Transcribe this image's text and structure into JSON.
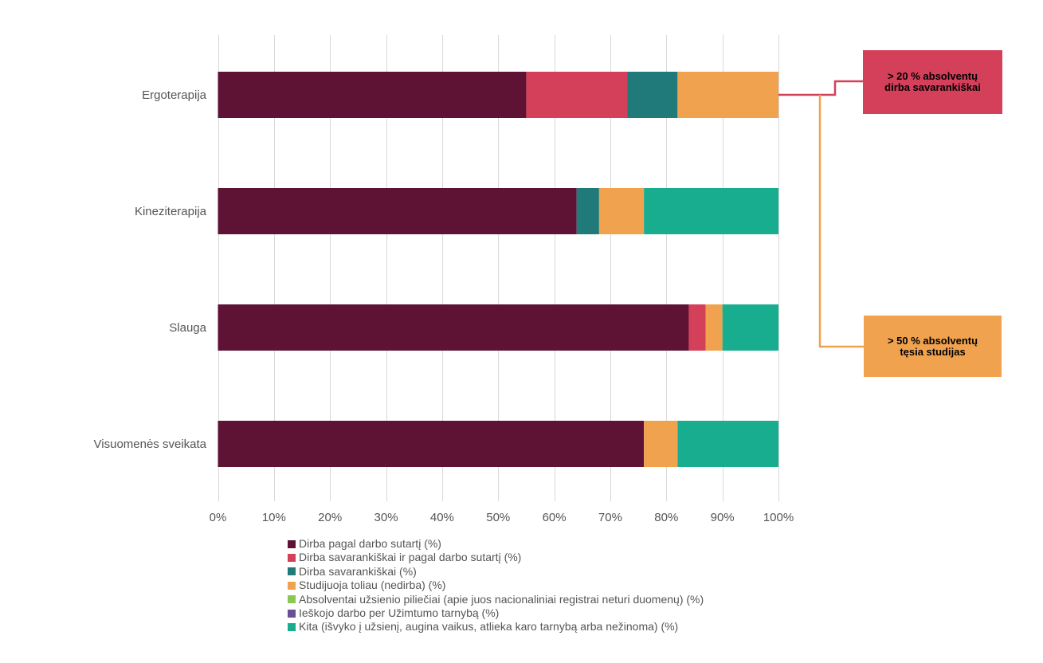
{
  "chart_data": {
    "type": "bar",
    "orientation": "horizontal",
    "stacked": "percent",
    "categories": [
      "Ergoterapija",
      "Kineziterapija",
      "Slauga",
      "Visuomenės sveikata"
    ],
    "x_ticks": [
      "0%",
      "10%",
      "20%",
      "30%",
      "40%",
      "50%",
      "60%",
      "70%",
      "80%",
      "90%",
      "100%"
    ],
    "xlim": [
      0,
      100
    ],
    "grid": true,
    "legend_position": "bottom",
    "series": [
      {
        "name": "Dirba pagal darbo sutartį (%)",
        "color": "#5e1234",
        "values": [
          55,
          64,
          84,
          76
        ]
      },
      {
        "name": "Dirba savarankiškai ir pagal darbo sutartį (%)",
        "color": "#d43f5a",
        "values": [
          18,
          0,
          3,
          0
        ]
      },
      {
        "name": "Dirba savarankiškai (%)",
        "color": "#207a79",
        "values": [
          9,
          4,
          0,
          0
        ]
      },
      {
        "name": "Studijuoja toliau (nedirba) (%)",
        "color": "#f0a24f",
        "values": [
          18,
          8,
          3,
          6
        ]
      },
      {
        "name": "Absolventai užsienio piliečiai (apie juos nacionaliniai registrai neturi duomenų) (%)",
        "color": "#8cc751",
        "values": [
          0,
          0,
          0,
          0
        ]
      },
      {
        "name": "Ieškojo darbo per Užimtumo tarnybą (%)",
        "color": "#6b4f96",
        "values": [
          0,
          0,
          0,
          0
        ]
      },
      {
        "name": "Kita (išvyko į užsienį, augina vaikus, atlieka karo tarnybą arba nežinoma) (%)",
        "color": "#17ad8e",
        "values": [
          0,
          24,
          10,
          18
        ]
      }
    ],
    "annotations": [
      {
        "id": "self-employed",
        "lines": [
          "> 20 % absolventų",
          "dirba savarankiškai"
        ],
        "color": "#d43f5a"
      },
      {
        "id": "studies",
        "lines": [
          "> 50 % absolventų",
          "tęsia studijas"
        ],
        "color": "#f0a24f"
      }
    ]
  }
}
